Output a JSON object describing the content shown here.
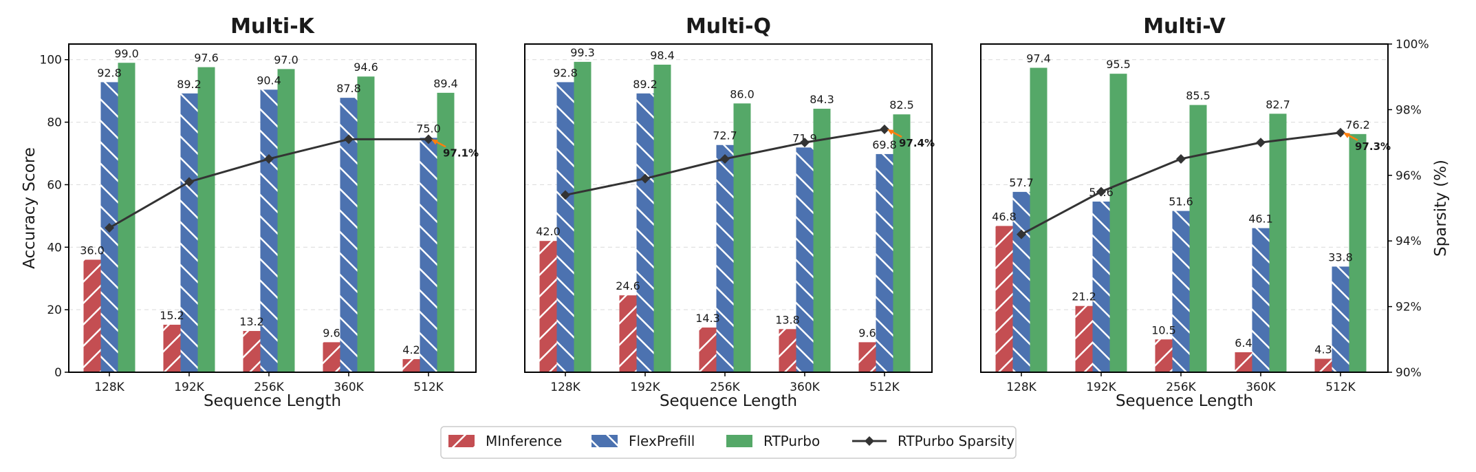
{
  "colors": {
    "minference": "#c44e52",
    "flexprefill": "#4c72b0",
    "rtpurbo": "#55a868",
    "sparsity_line": "#333333",
    "arrow": "#ff7f0e"
  },
  "chart_data": [
    {
      "type": "bar",
      "title": "Multi-K",
      "categories": [
        "128K",
        "192K",
        "256K",
        "360K",
        "512K"
      ],
      "xlabel": "Sequence Length",
      "ylabel": "Accuracy Score",
      "ylim": [
        0,
        105
      ],
      "yticks": [
        0,
        20,
        40,
        60,
        80,
        100
      ],
      "grid": true,
      "series": [
        {
          "name": "MInference",
          "values": [
            36.0,
            15.2,
            13.2,
            9.6,
            4.2
          ]
        },
        {
          "name": "FlexPrefill",
          "values": [
            92.8,
            89.2,
            90.4,
            87.8,
            75.0
          ]
        },
        {
          "name": "RTPurbo",
          "values": [
            99.0,
            97.6,
            97.0,
            94.6,
            89.4
          ]
        }
      ],
      "sparsity": {
        "name": "RTPurbo Sparsity",
        "values": [
          94.4,
          95.8,
          96.5,
          97.1,
          97.1
        ],
        "final_label": "97.1%"
      }
    },
    {
      "type": "bar",
      "title": "Multi-Q",
      "categories": [
        "128K",
        "192K",
        "256K",
        "360K",
        "512K"
      ],
      "xlabel": "Sequence Length",
      "ylabel": "",
      "ylim": [
        0,
        105
      ],
      "grid": true,
      "series": [
        {
          "name": "MInference",
          "values": [
            42.0,
            24.6,
            14.3,
            13.8,
            9.6
          ]
        },
        {
          "name": "FlexPrefill",
          "values": [
            92.8,
            89.2,
            72.7,
            71.9,
            69.8
          ]
        },
        {
          "name": "RTPurbo",
          "values": [
            99.3,
            98.4,
            86.0,
            84.3,
            82.5
          ]
        }
      ],
      "sparsity": {
        "name": "RTPurbo Sparsity",
        "values": [
          95.4,
          95.9,
          96.5,
          97.0,
          97.4
        ],
        "final_label": "97.4%"
      }
    },
    {
      "type": "bar",
      "title": "Multi-V",
      "categories": [
        "128K",
        "192K",
        "256K",
        "360K",
        "512K"
      ],
      "xlabel": "Sequence Length",
      "ylabel": "",
      "y2label": "Sparsity (%)",
      "ylim": [
        0,
        105
      ],
      "y2lim": [
        90,
        100
      ],
      "y2ticks": [
        "90%",
        "92%",
        "94%",
        "96%",
        "98%",
        "100%"
      ],
      "grid": true,
      "series": [
        {
          "name": "MInference",
          "values": [
            46.8,
            21.2,
            10.5,
            6.4,
            4.3
          ]
        },
        {
          "name": "FlexPrefill",
          "values": [
            57.7,
            54.6,
            51.6,
            46.1,
            33.8
          ]
        },
        {
          "name": "RTPurbo",
          "values": [
            97.4,
            95.5,
            85.5,
            82.7,
            76.2
          ]
        }
      ],
      "sparsity": {
        "name": "RTPurbo Sparsity",
        "values": [
          94.2,
          95.5,
          96.5,
          97.0,
          97.3
        ],
        "final_label": "97.3%"
      }
    }
  ],
  "legend": {
    "position": "bottom-center",
    "items": [
      "MInference",
      "FlexPrefill",
      "RTPurbo",
      "RTPurbo Sparsity"
    ]
  }
}
